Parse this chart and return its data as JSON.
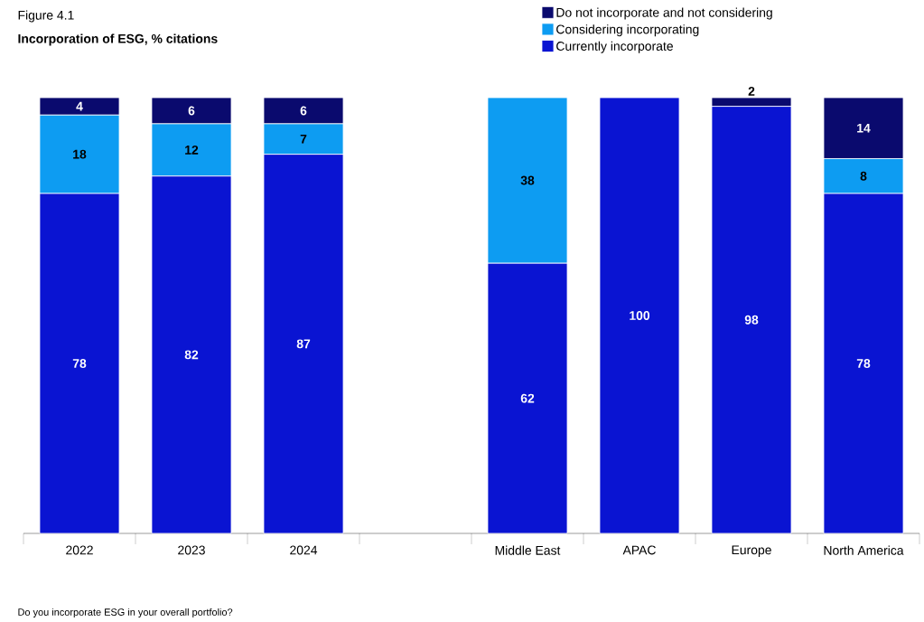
{
  "chart_data": {
    "type": "bar",
    "stacked": true,
    "title": "Incorporation of ESG, % citations",
    "annotations": [
      "Figure 4.1",
      "Do you incorporate ESG in your overall portfolio?"
    ],
    "categories": [
      "2022",
      "2023",
      "2024",
      null,
      "Middle East",
      "APAC",
      "Europe",
      "North America"
    ],
    "series": [
      {
        "name": "Currently incorporate",
        "color": "#0a14d2",
        "values": [
          78,
          82,
          87,
          null,
          62,
          100,
          98,
          78
        ]
      },
      {
        "name": "Considering incorporating",
        "color": "#0d9cf2",
        "values": [
          18,
          12,
          7,
          null,
          38,
          null,
          null,
          8
        ]
      },
      {
        "name": "Do not incorporate and not considering",
        "color": "#0a0a6e",
        "values": [
          4,
          6,
          6,
          null,
          null,
          null,
          2,
          14
        ]
      }
    ],
    "ylim": [
      0,
      100
    ],
    "data_labels": true,
    "legend": "top right",
    "tick_labels": "x"
  }
}
